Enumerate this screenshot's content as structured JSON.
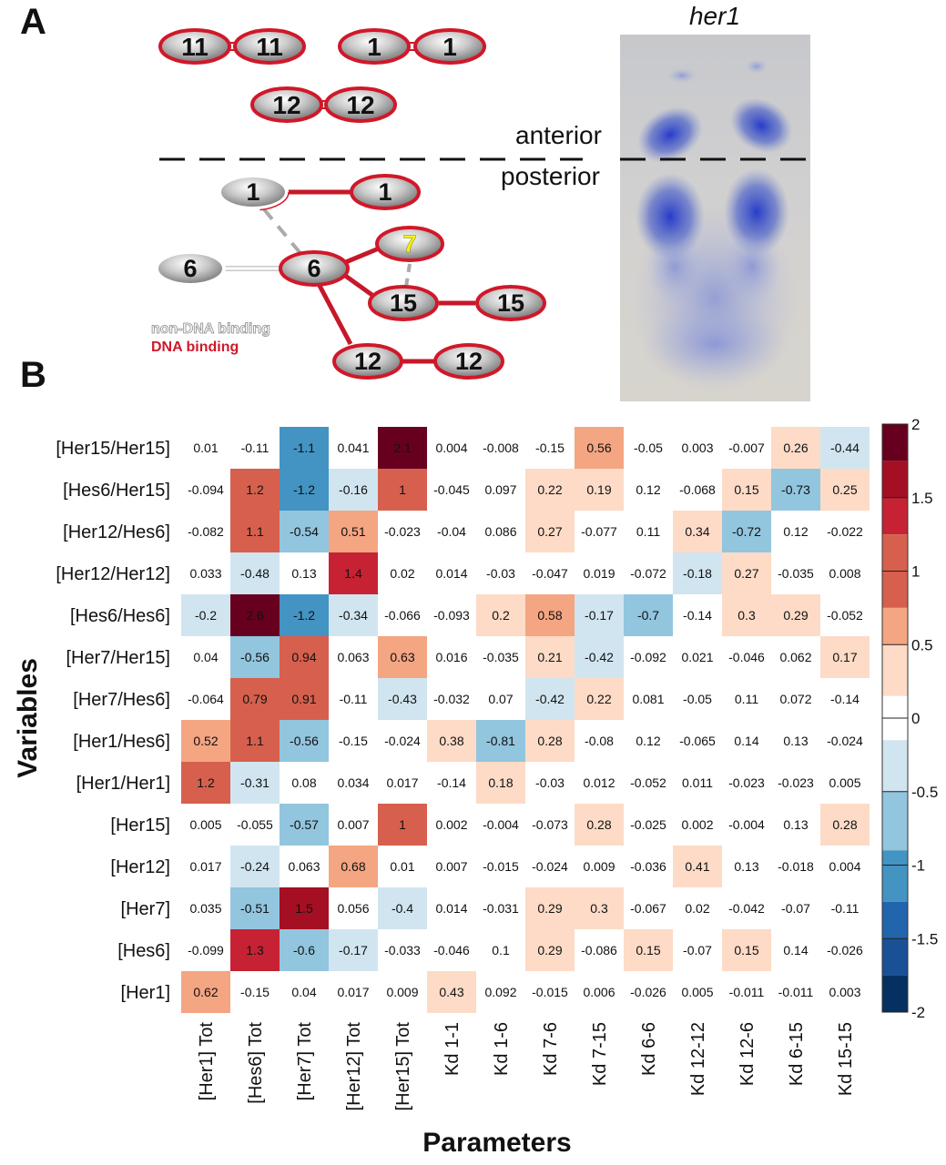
{
  "panel_a": {
    "letter": "A",
    "image_title": "her1",
    "anterior_label": "anterior",
    "posterior_label": "posterior",
    "legend_non_dna": "non-DNA binding",
    "legend_dna": "DNA binding",
    "colors": {
      "dna_binding": "#d0182a",
      "non_dna_binding": "#ffffff",
      "stain": "#2f47c4",
      "highlight_number": "#f3f21a"
    },
    "anterior_dimers": [
      {
        "left": "11",
        "right": "11"
      },
      {
        "left": "1",
        "right": "1"
      },
      {
        "left": "12",
        "right": "12"
      }
    ],
    "posterior_nodes": [
      "1",
      "1",
      "6",
      "6",
      "7",
      "15",
      "15",
      "12",
      "12"
    ]
  },
  "panel_b": {
    "letter": "B"
  },
  "chart_data": {
    "type": "heatmap",
    "xlabel": "Parameters",
    "ylabel": "Variables",
    "columns": [
      "[Her1] Tot",
      "[Hes6] Tot",
      "[Her7] Tot",
      "[Her12] Tot",
      "[Her15] Tot",
      "Kd 1-1",
      "Kd 1-6",
      "Kd 7-6",
      "Kd 7-15",
      "Kd 6-6",
      "Kd 12-12",
      "Kd 12-6",
      "Kd 6-15",
      "Kd 15-15"
    ],
    "rows": [
      "[Her15/Her15]",
      "[Hes6/Her15]",
      "[Her12/Hes6]",
      "[Her12/Her12]",
      "[Hes6/Hes6]",
      "[Her7/Her15]",
      "[Her7/Hes6]",
      "[Her1/Hes6]",
      "[Her1/Her1]",
      "[Her15]",
      "[Her12]",
      "[Her7]",
      "[Hes6]",
      "[Her1]"
    ],
    "values": [
      [
        "0.01",
        "-0.11",
        "-1.1",
        "0.041",
        "2.1",
        "0.004",
        "-0.008",
        "-0.15",
        "0.56",
        "-0.05",
        "0.003",
        "-0.007",
        "0.26",
        "-0.44"
      ],
      [
        "-0.094",
        "1.2",
        "-1.2",
        "-0.16",
        "1",
        "-0.045",
        "0.097",
        "0.22",
        "0.19",
        "0.12",
        "-0.068",
        "0.15",
        "-0.73",
        "0.25"
      ],
      [
        "-0.082",
        "1.1",
        "-0.54",
        "0.51",
        "-0.023",
        "-0.04",
        "0.086",
        "0.27",
        "-0.077",
        "0.11",
        "0.34",
        "-0.72",
        "0.12",
        "-0.022"
      ],
      [
        "0.033",
        "-0.48",
        "0.13",
        "1.4",
        "0.02",
        "0.014",
        "-0.03",
        "-0.047",
        "0.019",
        "-0.072",
        "-0.18",
        "0.27",
        "-0.035",
        "0.008"
      ],
      [
        "-0.2",
        "2.6",
        "-1.2",
        "-0.34",
        "-0.066",
        "-0.093",
        "0.2",
        "0.58",
        "-0.17",
        "-0.7",
        "-0.14",
        "0.3",
        "0.29",
        "-0.052"
      ],
      [
        "0.04",
        "-0.56",
        "0.94",
        "0.063",
        "0.63",
        "0.016",
        "-0.035",
        "0.21",
        "-0.42",
        "-0.092",
        "0.021",
        "-0.046",
        "0.062",
        "0.17"
      ],
      [
        "-0.064",
        "0.79",
        "0.91",
        "-0.11",
        "-0.43",
        "-0.032",
        "0.07",
        "-0.42",
        "0.22",
        "0.081",
        "-0.05",
        "0.11",
        "0.072",
        "-0.14"
      ],
      [
        "0.52",
        "1.1",
        "-0.56",
        "-0.15",
        "-0.024",
        "0.38",
        "-0.81",
        "0.28",
        "-0.08",
        "0.12",
        "-0.065",
        "0.14",
        "0.13",
        "-0.024"
      ],
      [
        "1.2",
        "-0.31",
        "0.08",
        "0.034",
        "0.017",
        "-0.14",
        "0.18",
        "-0.03",
        "0.012",
        "-0.052",
        "0.011",
        "-0.023",
        "-0.023",
        "0.005"
      ],
      [
        "0.005",
        "-0.055",
        "-0.57",
        "0.007",
        "1",
        "0.002",
        "-0.004",
        "-0.073",
        "0.28",
        "-0.025",
        "0.002",
        "-0.004",
        "0.13",
        "0.28"
      ],
      [
        "0.017",
        "-0.24",
        "0.063",
        "0.68",
        "0.01",
        "0.007",
        "-0.015",
        "-0.024",
        "0.009",
        "-0.036",
        "0.41",
        "0.13",
        "-0.018",
        "0.004"
      ],
      [
        "0.035",
        "-0.51",
        "1.5",
        "0.056",
        "-0.4",
        "0.014",
        "-0.031",
        "0.29",
        "0.3",
        "-0.067",
        "0.02",
        "-0.042",
        "-0.07",
        "-0.11"
      ],
      [
        "-0.099",
        "1.3",
        "-0.6",
        "-0.17",
        "-0.033",
        "-0.046",
        "0.1",
        "0.29",
        "-0.086",
        "0.15",
        "-0.07",
        "0.15",
        "0.14",
        "-0.026"
      ],
      [
        "0.62",
        "-0.15",
        "0.04",
        "0.017",
        "0.009",
        "0.43",
        "0.092",
        "-0.015",
        "0.006",
        "-0.026",
        "0.005",
        "-0.011",
        "-0.011",
        "0.003"
      ]
    ],
    "colorbar": {
      "range": [
        -2,
        2
      ],
      "tick_labels": [
        "2",
        "1.5",
        "1",
        "0.5",
        "0",
        "-0.5",
        "-1",
        "-1.5",
        "-2"
      ],
      "bins": [
        {
          "min": 1.75,
          "max": 2.0,
          "color": "#67001f"
        },
        {
          "min": 1.5,
          "max": 1.75,
          "color": "#a50f24"
        },
        {
          "min": 1.25,
          "max": 1.5,
          "color": "#c62234"
        },
        {
          "min": 0.75,
          "max": 1.25,
          "color": "#d6604d"
        },
        {
          "min": 0.5,
          "max": 0.75,
          "color": "#f4a582"
        },
        {
          "min": 0.15,
          "max": 0.5,
          "color": "#fddbc7"
        },
        {
          "min": -0.15,
          "max": 0.15,
          "color": "#ffffff"
        },
        {
          "min": -0.5,
          "max": -0.15,
          "color": "#d1e5f0"
        },
        {
          "min": -0.9,
          "max": -0.5,
          "color": "#92c5de"
        },
        {
          "min": -1.25,
          "max": -0.9,
          "color": "#4393c3"
        },
        {
          "min": -1.5,
          "max": -1.25,
          "color": "#2166ac"
        },
        {
          "min": -1.75,
          "max": -1.5,
          "color": "#1a5096"
        },
        {
          "min": -2.0,
          "max": -1.75,
          "color": "#053061"
        }
      ]
    }
  }
}
